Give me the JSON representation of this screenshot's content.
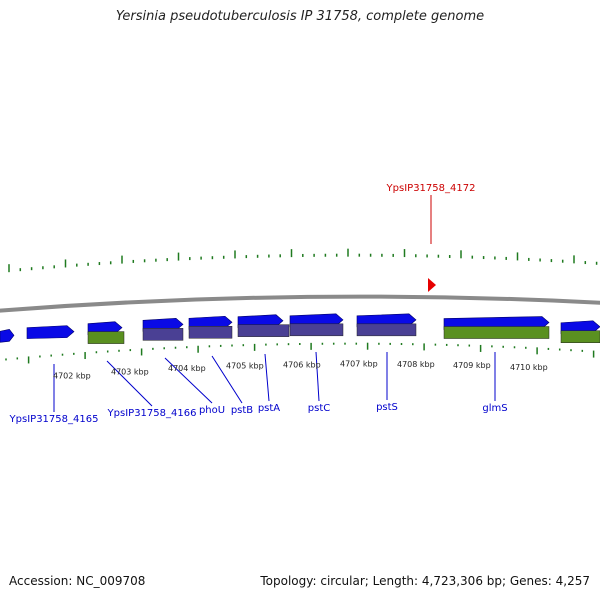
{
  "title": "Yersinia pseudotuberculosis IP 31758, complete genome",
  "footer": {
    "accession": "Accession: NC_009708",
    "summary": "Topology: circular; Length: 4,723,306 bp; Genes: 4,257"
  },
  "colors": {
    "gene_forward": "#0a0ae6",
    "gene_other": "#5a9020",
    "gene_operon": "#4a4094",
    "label_gene": "#0000cc",
    "label_highlight": "#cc0000",
    "ticks": "#1f7a1f",
    "backbone": "#8a8a8a",
    "marker": "#e60000"
  },
  "scale_labels": [
    "4702 kbp",
    "4703 kbp",
    "4704 kbp",
    "4705 kbp",
    "4706 kbp",
    "4707 kbp",
    "4708 kbp",
    "4709 kbp",
    "4710 kbp"
  ],
  "gene_labels": [
    "YpsIP31758_4165",
    "YpsIP31758_4166",
    "phoU",
    "pstB",
    "pstA",
    "pstC",
    "pstS",
    "glmS"
  ],
  "highlight_label": "YpsIP31758_4172"
}
